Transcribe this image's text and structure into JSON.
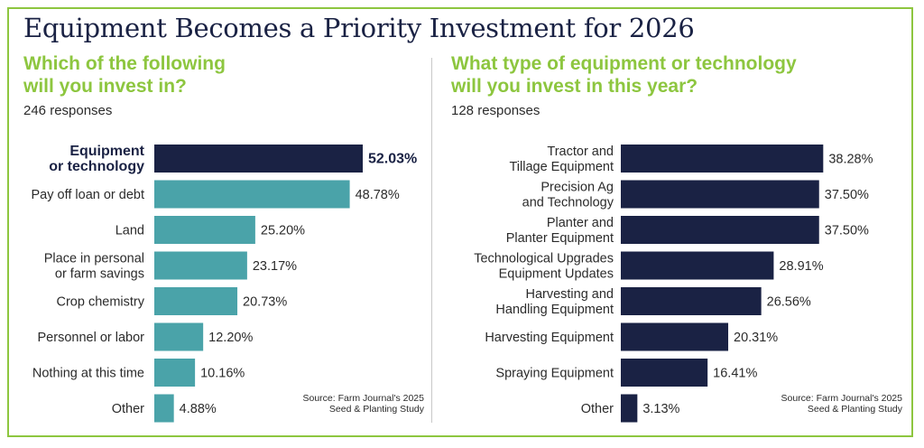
{
  "title": "Equipment Becomes a Priority Investment for 2026",
  "colors": {
    "navy": "#1a2244",
    "teal": "#4aa3a9",
    "green": "#8dc63f",
    "text": "#2b2b2b"
  },
  "left": {
    "subtitle": "Which of the following\nwill you invest in?",
    "responses": "246 responses",
    "source": "Source: Farm Journal's 2025\nSeed & Planting Study"
  },
  "right": {
    "subtitle": "What type of equipment or technology\nwill you invest in this year?",
    "responses": "128 responses",
    "source": "Source: Farm Journal's 2025\nSeed & Planting Study"
  },
  "chart_data": [
    {
      "type": "bar",
      "orientation": "horizontal",
      "title": "Which of the following will you invest in?",
      "categories": [
        "Equipment\nor technology",
        "Pay off loan or debt",
        "Land",
        "Place in personal\nor farm savings",
        "Crop chemistry",
        "Personnel or labor",
        "Nothing at this time",
        "Other"
      ],
      "values": [
        52.03,
        48.78,
        25.2,
        23.17,
        20.73,
        12.2,
        10.16,
        4.88
      ],
      "labels": [
        "52.03%",
        "48.78%",
        "25.20%",
        "23.17%",
        "20.73%",
        "12.20%",
        "10.16%",
        "4.88%"
      ],
      "highlight_index": 0,
      "unit": "%"
    },
    {
      "type": "bar",
      "orientation": "horizontal",
      "title": "What type of equipment or technology will you invest in this year?",
      "categories": [
        "Tractor and\nTillage Equipment",
        "Precision Ag\nand Technology",
        "Planter and\nPlanter Equipment",
        "Technological Upgrades\nEquipment Updates",
        "Harvesting and\nHandling Equipment",
        "Harvesting Equipment",
        "Spraying Equipment",
        "Other"
      ],
      "values": [
        38.28,
        37.5,
        37.5,
        28.91,
        26.56,
        20.31,
        16.41,
        3.13
      ],
      "labels": [
        "38.28%",
        "37.50%",
        "37.50%",
        "28.91%",
        "26.56%",
        "20.31%",
        "16.41%",
        "3.13%"
      ],
      "unit": "%"
    }
  ]
}
